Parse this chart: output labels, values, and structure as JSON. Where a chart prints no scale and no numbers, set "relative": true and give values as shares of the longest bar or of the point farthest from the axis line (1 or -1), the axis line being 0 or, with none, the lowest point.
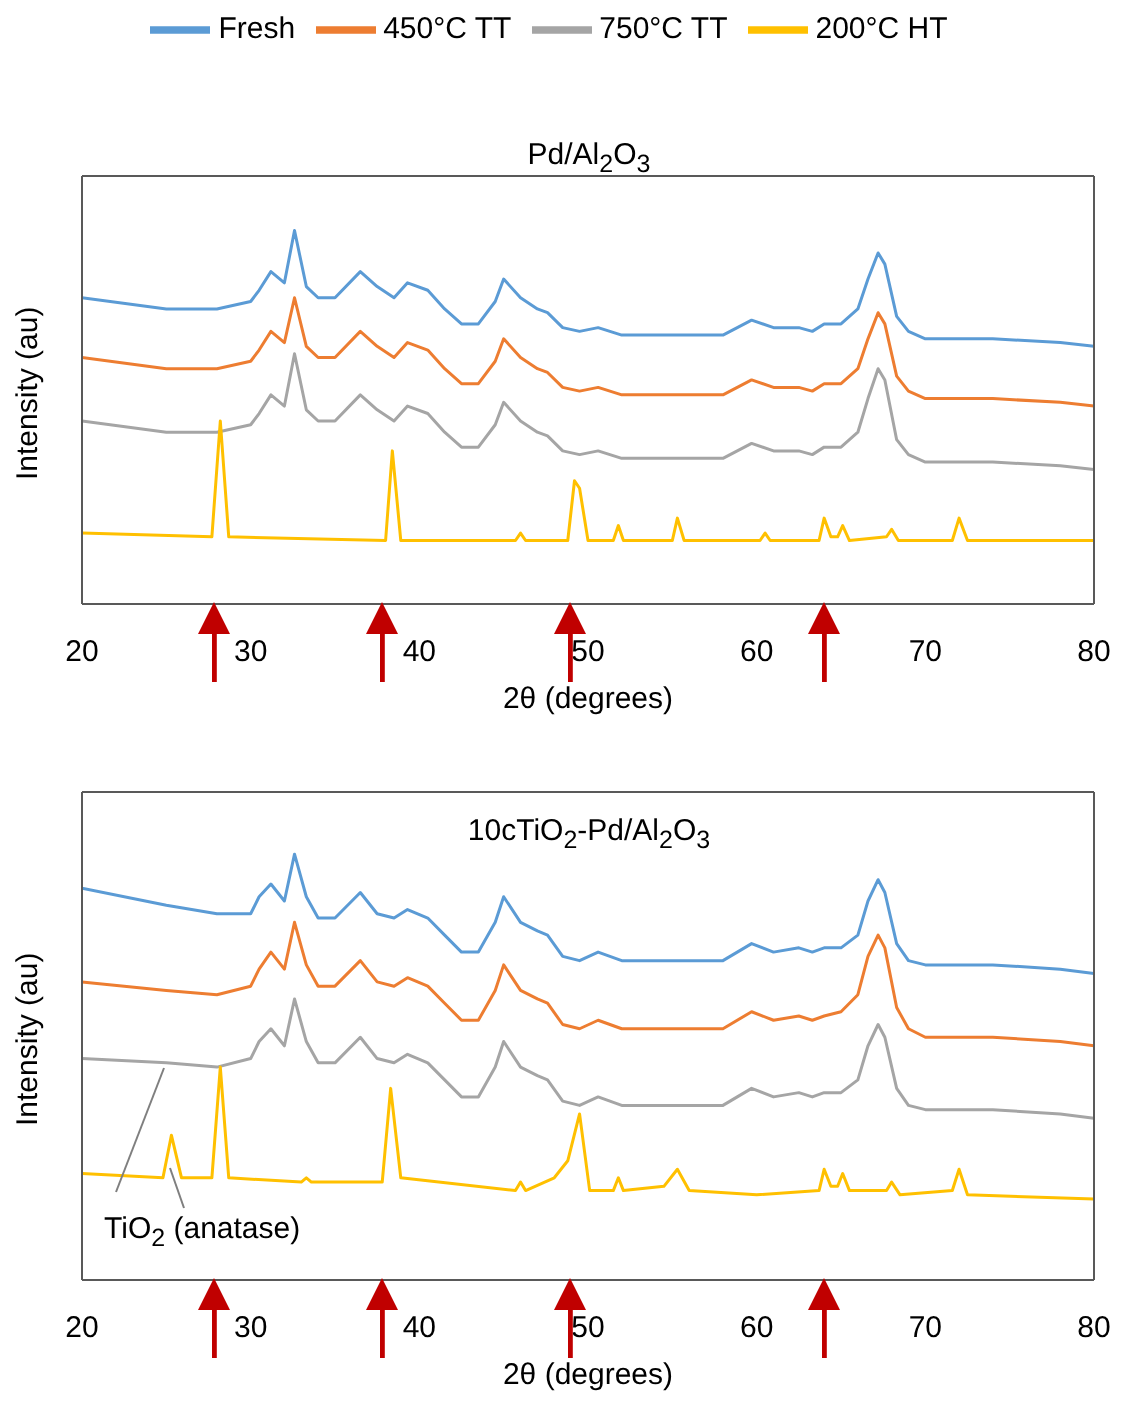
{
  "chart_data": [
    {
      "type": "line",
      "title": "Pd/Al$_{2}$O$_{3}$",
      "xlabel": "2θ (degrees)",
      "ylabel": "Intensity (au)",
      "relative": true,
      "xlim": [
        20,
        80
      ],
      "xticks": [
        20,
        30,
        40,
        50,
        60,
        70,
        80
      ],
      "legend": "top",
      "marker": "none",
      "line_style": "solid",
      "x": [
        20,
        25,
        28,
        30,
        30.5,
        31.2,
        32,
        32.6,
        33.3,
        34,
        35,
        36.5,
        37.5,
        38.5,
        39.3,
        40.5,
        41.5,
        42.5,
        43.5,
        44.5,
        45,
        46,
        47,
        47.6,
        48.5,
        49.5,
        50.6,
        52,
        55,
        58,
        59.7,
        61,
        62.5,
        63.3,
        64,
        65,
        66,
        66.6,
        67.2,
        67.6,
        68.3,
        69,
        70,
        72,
        74,
        78,
        80
      ],
      "series": [
        {
          "name": "Fresh",
          "color": "#5b9bd5",
          "values": [
            0.82,
            0.79,
            0.79,
            0.81,
            0.84,
            0.89,
            0.86,
            1.0,
            0.85,
            0.82,
            0.82,
            0.89,
            0.85,
            0.82,
            0.86,
            0.84,
            0.79,
            0.75,
            0.75,
            0.81,
            0.87,
            0.82,
            0.79,
            0.78,
            0.74,
            0.73,
            0.74,
            0.72,
            0.72,
            0.72,
            0.76,
            0.74,
            0.74,
            0.73,
            0.75,
            0.75,
            0.79,
            0.87,
            0.94,
            0.91,
            0.77,
            0.73,
            0.71,
            0.71,
            0.71,
            0.7,
            0.69
          ]
        },
        {
          "name": "450°C TT",
          "color": "#ed7d31",
          "values": [
            0.66,
            0.63,
            0.63,
            0.65,
            0.68,
            0.73,
            0.7,
            0.82,
            0.69,
            0.66,
            0.66,
            0.73,
            0.69,
            0.66,
            0.7,
            0.68,
            0.63,
            0.59,
            0.59,
            0.65,
            0.71,
            0.66,
            0.63,
            0.62,
            0.58,
            0.57,
            0.58,
            0.56,
            0.56,
            0.56,
            0.6,
            0.58,
            0.58,
            0.57,
            0.59,
            0.59,
            0.63,
            0.71,
            0.78,
            0.75,
            0.61,
            0.57,
            0.55,
            0.55,
            0.55,
            0.54,
            0.53
          ]
        },
        {
          "name": "750°C TT",
          "color": "#a5a5a5",
          "values": [
            0.49,
            0.46,
            0.46,
            0.48,
            0.51,
            0.56,
            0.53,
            0.67,
            0.52,
            0.49,
            0.49,
            0.56,
            0.52,
            0.49,
            0.53,
            0.51,
            0.46,
            0.42,
            0.42,
            0.48,
            0.54,
            0.49,
            0.46,
            0.45,
            0.41,
            0.4,
            0.41,
            0.39,
            0.39,
            0.39,
            0.43,
            0.41,
            0.41,
            0.4,
            0.42,
            0.42,
            0.46,
            0.55,
            0.63,
            0.6,
            0.44,
            0.4,
            0.38,
            0.38,
            0.38,
            0.37,
            0.36
          ]
        },
        {
          "name": "200°C HT",
          "color": "#ffc000",
          "x": [
            20,
            27.7,
            28.2,
            28.7,
            38,
            38.4,
            38.9,
            45.7,
            46,
            46.3,
            48.8,
            49.2,
            49.5,
            50,
            51.5,
            51.8,
            52.1,
            55,
            55.3,
            55.7,
            60.2,
            60.5,
            60.8,
            63.7,
            64,
            64.4,
            64.8,
            65.1,
            65.5,
            67.7,
            68,
            68.4,
            71.6,
            72,
            72.5,
            80
          ],
          "values": [
            0.19,
            0.18,
            0.49,
            0.18,
            0.17,
            0.41,
            0.17,
            0.17,
            0.19,
            0.17,
            0.17,
            0.33,
            0.31,
            0.17,
            0.17,
            0.21,
            0.17,
            0.17,
            0.23,
            0.17,
            0.17,
            0.19,
            0.17,
            0.17,
            0.23,
            0.18,
            0.18,
            0.21,
            0.17,
            0.18,
            0.2,
            0.17,
            0.17,
            0.23,
            0.17,
            0.17
          ]
        }
      ]
    },
    {
      "type": "line",
      "title": "10cTiO$_{2}$-Pd/Al$_{2}$O$_{3}$",
      "xlabel": "2θ (degrees)",
      "ylabel": "Intensity (au)",
      "relative": true,
      "xlim": [
        20,
        80
      ],
      "xticks": [
        20,
        30,
        40,
        50,
        60,
        70,
        80
      ],
      "marker": "none",
      "line_style": "solid",
      "annotations": [
        "TiO$_{2}$ (anatase)"
      ],
      "x": [
        20,
        25,
        28,
        30,
        30.5,
        31.2,
        32,
        32.6,
        33.3,
        34,
        35,
        36.5,
        37.5,
        38.5,
        39.3,
        40.5,
        41.5,
        42.5,
        43.5,
        44.5,
        45,
        46,
        47,
        47.6,
        48.5,
        49.5,
        50.6,
        52,
        55,
        58,
        59.7,
        61,
        62.5,
        63.3,
        64,
        65,
        66,
        66.6,
        67.2,
        67.6,
        68.3,
        69,
        70,
        72,
        74,
        78,
        80
      ],
      "series": [
        {
          "color": "#5b9bd5",
          "values": [
            0.92,
            0.88,
            0.86,
            0.86,
            0.9,
            0.93,
            0.89,
            1.0,
            0.9,
            0.85,
            0.85,
            0.91,
            0.86,
            0.85,
            0.87,
            0.85,
            0.81,
            0.77,
            0.77,
            0.84,
            0.9,
            0.84,
            0.82,
            0.81,
            0.76,
            0.75,
            0.77,
            0.75,
            0.75,
            0.75,
            0.79,
            0.77,
            0.78,
            0.77,
            0.78,
            0.78,
            0.81,
            0.89,
            0.94,
            0.91,
            0.79,
            0.75,
            0.74,
            0.74,
            0.74,
            0.73,
            0.72
          ]
        },
        {
          "color": "#ed7d31",
          "values": [
            0.7,
            0.68,
            0.67,
            0.69,
            0.73,
            0.77,
            0.73,
            0.84,
            0.74,
            0.69,
            0.69,
            0.75,
            0.7,
            0.69,
            0.71,
            0.69,
            0.65,
            0.61,
            0.61,
            0.68,
            0.74,
            0.68,
            0.66,
            0.65,
            0.6,
            0.59,
            0.61,
            0.59,
            0.59,
            0.59,
            0.63,
            0.61,
            0.62,
            0.61,
            0.62,
            0.63,
            0.67,
            0.76,
            0.81,
            0.78,
            0.64,
            0.59,
            0.57,
            0.57,
            0.57,
            0.56,
            0.55
          ]
        },
        {
          "color": "#a5a5a5",
          "values": [
            0.52,
            0.51,
            0.5,
            0.52,
            0.56,
            0.59,
            0.55,
            0.66,
            0.56,
            0.51,
            0.51,
            0.57,
            0.52,
            0.51,
            0.53,
            0.51,
            0.47,
            0.43,
            0.43,
            0.5,
            0.56,
            0.5,
            0.48,
            0.47,
            0.42,
            0.41,
            0.43,
            0.41,
            0.41,
            0.41,
            0.45,
            0.43,
            0.44,
            0.43,
            0.44,
            0.44,
            0.47,
            0.55,
            0.6,
            0.57,
            0.45,
            0.41,
            0.4,
            0.4,
            0.4,
            0.39,
            0.38
          ]
        },
        {
          "color": "#ffc000",
          "x": [
            20,
            24.8,
            25.3,
            25.9,
            27.7,
            28.2,
            28.7,
            33,
            33.3,
            33.6,
            37.8,
            38.3,
            38.9,
            45.7,
            46,
            46.3,
            48,
            48.8,
            49.5,
            50.1,
            51.5,
            51.8,
            52.1,
            54.5,
            55.3,
            56,
            60,
            63.7,
            64,
            64.4,
            64.8,
            65.1,
            65.5,
            67.7,
            68,
            68.5,
            71.6,
            72,
            72.5,
            80
          ],
          "values": [
            0.25,
            0.24,
            0.34,
            0.24,
            0.24,
            0.5,
            0.24,
            0.23,
            0.24,
            0.23,
            0.23,
            0.45,
            0.24,
            0.21,
            0.23,
            0.21,
            0.24,
            0.28,
            0.39,
            0.21,
            0.21,
            0.24,
            0.21,
            0.22,
            0.26,
            0.21,
            0.2,
            0.21,
            0.26,
            0.22,
            0.22,
            0.25,
            0.21,
            0.21,
            0.23,
            0.2,
            0.21,
            0.26,
            0.2,
            0.19
          ]
        }
      ]
    }
  ]
}
